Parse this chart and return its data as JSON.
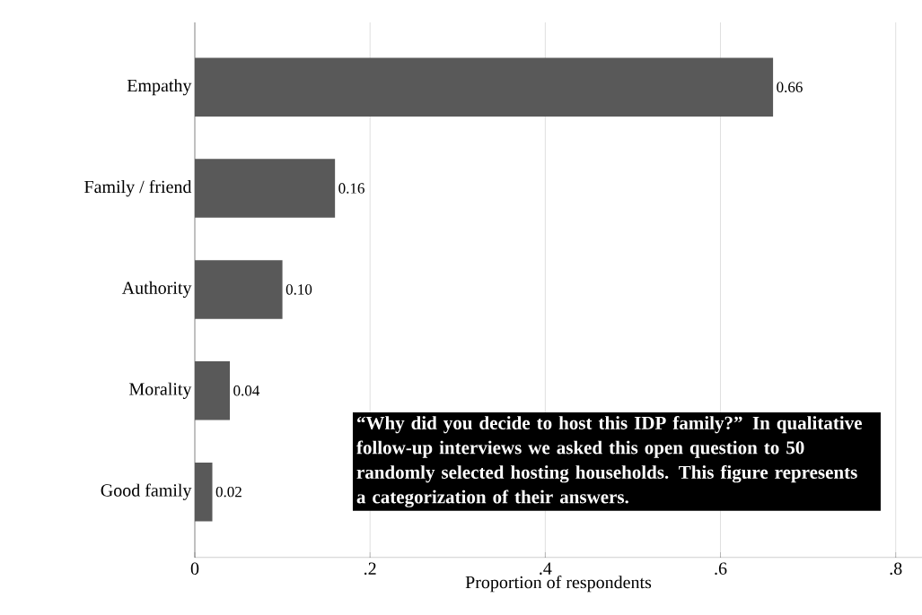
{
  "chart_data": {
    "type": "bar",
    "orientation": "horizontal",
    "xlabel": "Proportion of respondents",
    "categories": [
      "Empathy",
      "Family / friend",
      "Authority",
      "Morality",
      "Good family"
    ],
    "values": [
      0.66,
      0.16,
      0.1,
      0.04,
      0.02
    ],
    "value_labels": [
      "0.66",
      "0.16",
      "0.10",
      "0.04",
      "0.02"
    ],
    "color": "#595959",
    "xlim": [
      0,
      0.83
    ],
    "xticks": [
      0,
      {
        "value": 0.2,
        "label": ".2"
      },
      {
        "value": 0.4,
        "label": ".4"
      },
      {
        "value": 0.6,
        "label": ".6"
      },
      {
        "value": 0.8,
        "label": ".8"
      }
    ],
    "grid": "x",
    "annotations": [
      "“Why did you decide to host this IDP family?” In qualitative follow-up interviews we asked this open question to 50 randomly selected hosting households. This figure represents a categorization of their answers."
    ]
  }
}
